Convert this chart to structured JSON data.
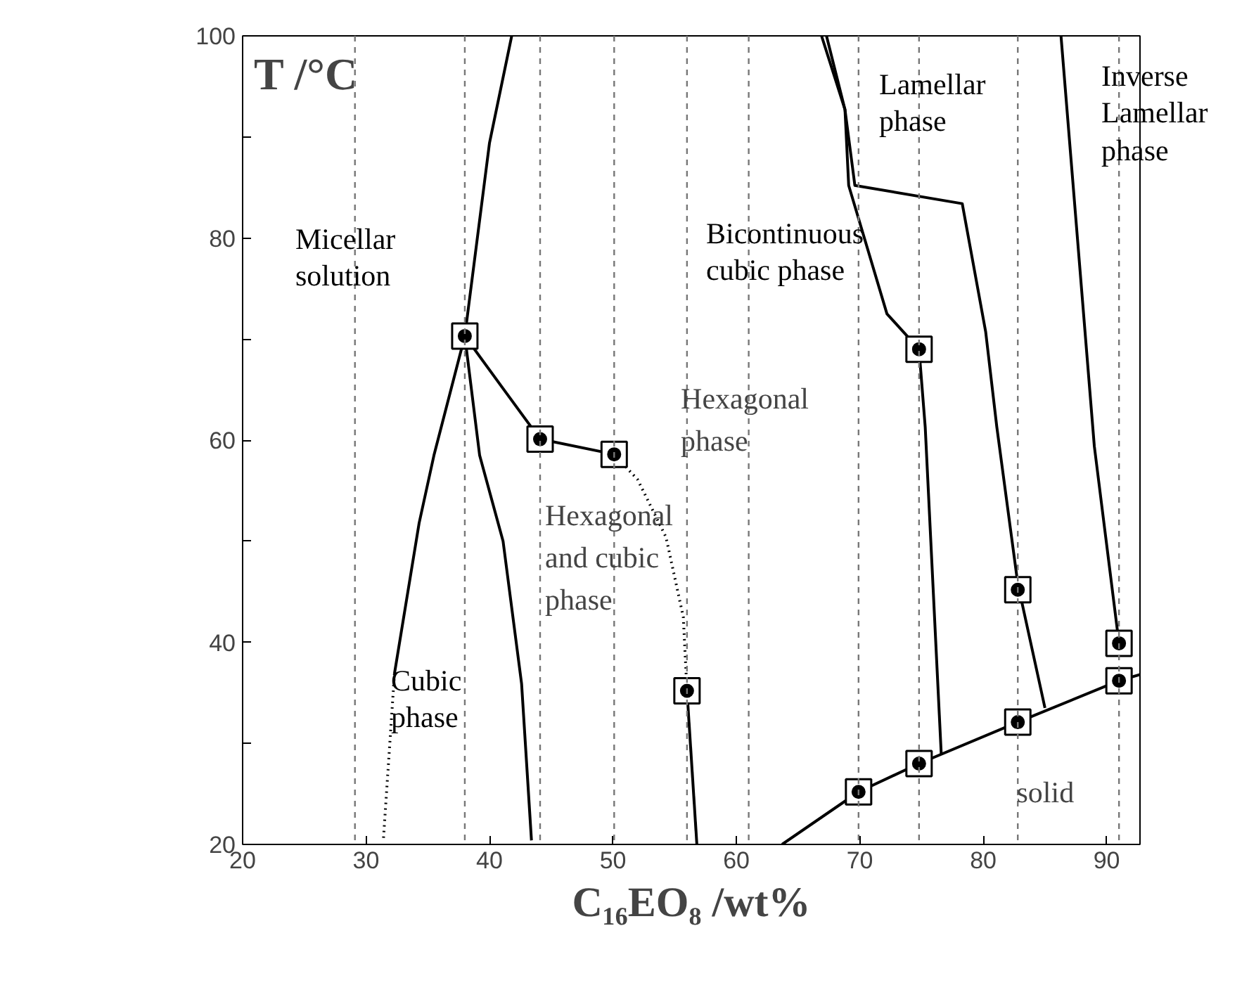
{
  "chart_data": {
    "type": "line",
    "xlabel": "C₁₆EO₈ /wt%",
    "ylabel": "T /°C",
    "xlim": [
      20,
      92.7
    ],
    "ylim": [
      20,
      100
    ],
    "xticks": [
      20,
      30,
      40,
      50,
      60,
      70,
      80,
      90
    ],
    "yticks": [
      20,
      {
        "value": 30,
        "label": null
      },
      40,
      {
        "value": 50,
        "label": null
      },
      60,
      {
        "value": 70,
        "label": null
      },
      80,
      {
        "value": 90,
        "label": null
      },
      100
    ],
    "grid": false,
    "series": [
      {
        "color": "#000000",
        "x": [
          41.8,
          40.0,
          38.0
        ],
        "values": [
          100,
          89.4,
          70.3
        ]
      },
      {
        "color": "#000000",
        "x": [
          38.0,
          41.1,
          44.1,
          50.1
        ],
        "values": [
          70.3,
          65.1,
          60.1,
          58.6
        ]
      },
      {
        "color": "#000000",
        "line_style": "dotted",
        "x": [
          50.1,
          52.0,
          54.3,
          55.7,
          56.0
        ],
        "values": [
          58.6,
          56.1,
          50.4,
          42.5,
          35.2
        ]
      },
      {
        "color": "#000000",
        "x": [
          56.0,
          56.8
        ],
        "values": [
          35.2,
          20
        ]
      },
      {
        "color": "#000000",
        "x": [
          38.0,
          35.5,
          34.3,
          32.3
        ],
        "values": [
          70.3,
          58.5,
          51.8,
          36.9
        ]
      },
      {
        "color": "#000000",
        "line_style": "dotted",
        "x": [
          32.3,
          31.4
        ],
        "values": [
          36.9,
          20.4
        ]
      },
      {
        "color": "#000000",
        "x": [
          38.0,
          39.2,
          41.1,
          42.6,
          43.4
        ],
        "values": [
          70.3,
          58.5,
          50.0,
          35.9,
          20.4
        ]
      },
      {
        "color": "#000000",
        "x": [
          66.9,
          68.8,
          69.1,
          72.2,
          74.8,
          75.3,
          76.6
        ],
        "values": [
          100,
          92.7,
          85.2,
          72.5,
          69.0,
          61.3,
          28.9
        ]
      },
      {
        "color": "#000000",
        "x": [
          67.3,
          68.8,
          69.6,
          78.3,
          80.2,
          81.1,
          82.8,
          85.0
        ],
        "values": [
          100,
          92.7,
          85.2,
          83.4,
          70.7,
          61.3,
          45.8,
          33.5
        ]
      },
      {
        "color": "#000000",
        "x": [
          86.3,
          89.0,
          91.0
        ],
        "values": [
          100,
          59.4,
          39.9
        ]
      },
      {
        "color": "#000000",
        "x": [
          63.7,
          69.9,
          74.8,
          82.8,
          91.0,
          92.7
        ],
        "values": [
          20,
          25.2,
          28.0,
          32.1,
          36.2,
          36.8
        ]
      },
      {
        "type": "scatter",
        "marker": "square",
        "color": "#000000",
        "x": [
          38.0,
          44.1,
          50.1,
          56.0,
          74.8,
          82.8,
          91.0,
          91.0,
          82.8,
          74.8,
          69.9
        ],
        "values": [
          70.3,
          60.1,
          58.6,
          35.2,
          69.0,
          45.2,
          39.9,
          36.2,
          32.1,
          28.0,
          25.2
        ]
      }
    ],
    "ref_lines": [
      {
        "axis": "x",
        "value": 29.1,
        "color": "#777777",
        "line_style": "dashed"
      },
      {
        "axis": "x",
        "value": 38.0,
        "color": "#777777",
        "line_style": "dashed"
      },
      {
        "axis": "x",
        "value": 44.1,
        "color": "#777777",
        "line_style": "dashed"
      },
      {
        "axis": "x",
        "value": 50.1,
        "color": "#777777",
        "line_style": "dashed"
      },
      {
        "axis": "x",
        "value": 56.0,
        "color": "#777777",
        "line_style": "dashed"
      },
      {
        "axis": "x",
        "value": 61.0,
        "color": "#777777",
        "line_style": "dashed"
      },
      {
        "axis": "x",
        "value": 69.9,
        "color": "#777777",
        "line_style": "dashed"
      },
      {
        "axis": "x",
        "value": 74.8,
        "color": "#777777",
        "line_style": "dashed"
      },
      {
        "axis": "x",
        "value": 82.8,
        "color": "#777777",
        "line_style": "dashed"
      },
      {
        "axis": "x",
        "value": 91.0,
        "color": "#777777",
        "line_style": "dashed"
      }
    ],
    "annotations": [
      "Micellar\nsolution",
      "Cubic\nphase",
      {
        "text": "Hexagonal\nand cubic\nphase",
        "x": 44.5,
        "y": 54.2
      },
      {
        "text": "Hexagonal\nphase",
        "x": 55.5,
        "y": 65.8
      },
      "Bicontinuous\ncubic phase",
      "Lamellar\nphase",
      "Inverse\nLamellar\nphase",
      {
        "text": "solid",
        "x": 82.7,
        "y": 26.8
      }
    ]
  }
}
